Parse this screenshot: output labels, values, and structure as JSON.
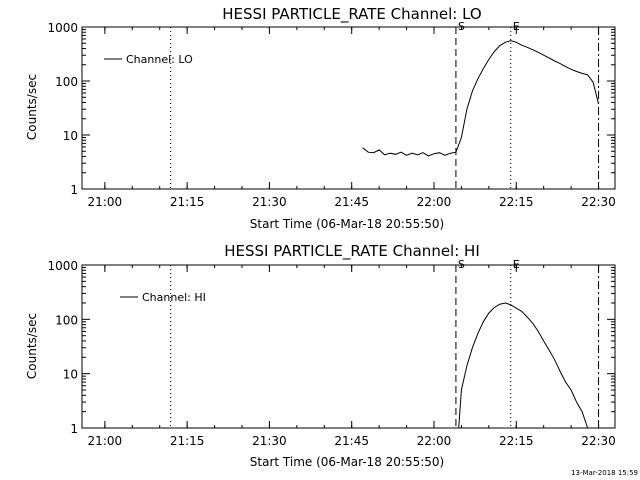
{
  "chart_data": [
    {
      "type": "line",
      "title": "HESSI PARTICLE_RATE Channel: LO",
      "xlabel": "Start Time (06-Mar-18 20:55:50)",
      "ylabel": "Counts/sec",
      "yscale": "log",
      "xlim": [
        "20:55:50",
        "22:33:00"
      ],
      "ylim": [
        1,
        1000
      ],
      "x_ticks": [
        "21:00",
        "21:15",
        "21:30",
        "21:45",
        "22:00",
        "22:15",
        "22:30"
      ],
      "y_ticks": [
        "1",
        "10",
        "100",
        "1000"
      ],
      "legend": {
        "position": "top-left",
        "entries": [
          "Channel: LO"
        ]
      },
      "series": [
        {
          "name": "Channel: LO",
          "x": [
            "21:47:00",
            "21:48:00",
            "21:49:00",
            "21:50:00",
            "21:51:00",
            "21:52:00",
            "21:53:00",
            "21:54:00",
            "21:55:00",
            "21:56:00",
            "21:57:00",
            "21:58:00",
            "21:59:00",
            "22:00:00",
            "22:01:00",
            "22:02:00",
            "22:03:00",
            "22:04:00",
            "22:05:00",
            "22:06:00",
            "22:07:00",
            "22:08:00",
            "22:09:00",
            "22:10:00",
            "22:11:00",
            "22:12:00",
            "22:13:00",
            "22:14:00",
            "22:15:00",
            "22:16:00",
            "22:17:00",
            "22:18:00",
            "22:19:00",
            "22:20:00",
            "22:21:00",
            "22:22:00",
            "22:23:00",
            "22:24:00",
            "22:25:00",
            "22:26:00",
            "22:27:00",
            "22:28:00",
            "22:29:00",
            "22:30:00"
          ],
          "y": [
            5.8,
            4.8,
            4.7,
            5.3,
            4.3,
            4.6,
            4.4,
            4.8,
            4.2,
            4.6,
            4.3,
            4.7,
            4.1,
            4.5,
            4.7,
            4.2,
            4.6,
            4.8,
            9,
            30,
            65,
            110,
            170,
            250,
            350,
            450,
            520,
            560,
            520,
            460,
            420,
            380,
            340,
            300,
            265,
            235,
            210,
            185,
            165,
            150,
            138,
            130,
            95,
            38
          ]
        }
      ],
      "vertical_lines": [
        {
          "time": "21:12:00",
          "style": "dotted",
          "label": ""
        },
        {
          "time": "22:04:00",
          "style": "dashed",
          "label": "S"
        },
        {
          "time": "22:14:00",
          "style": "dotted",
          "label": "E"
        },
        {
          "time": "22:30:00",
          "style": "dash-dot",
          "label": ""
        }
      ]
    },
    {
      "type": "line",
      "title": "HESSI PARTICLE_RATE Channel: HI",
      "xlabel": "Start Time (06-Mar-18 20:55:50)",
      "ylabel": "Counts/sec",
      "yscale": "log",
      "xlim": [
        "20:55:50",
        "22:33:00"
      ],
      "ylim": [
        1,
        1000
      ],
      "x_ticks": [
        "21:00",
        "21:15",
        "21:30",
        "21:45",
        "22:00",
        "22:15",
        "22:30"
      ],
      "y_ticks": [
        "1",
        "10",
        "100",
        "1000"
      ],
      "legend": {
        "position": "top-left",
        "entries": [
          "Channel: HI"
        ]
      },
      "series": [
        {
          "name": "Channel: HI",
          "x": [
            "22:04:30",
            "22:05:00",
            "22:06:00",
            "22:07:00",
            "22:08:00",
            "22:09:00",
            "22:10:00",
            "22:11:00",
            "22:12:00",
            "22:13:00",
            "22:14:00",
            "22:15:00",
            "22:16:00",
            "22:17:00",
            "22:18:00",
            "22:19:00",
            "22:20:00",
            "22:21:00",
            "22:22:00",
            "22:23:00",
            "22:24:00",
            "22:25:00",
            "22:26:00",
            "22:27:00",
            "22:28:00"
          ],
          "y": [
            1,
            5,
            14,
            30,
            55,
            90,
            130,
            165,
            190,
            200,
            185,
            160,
            140,
            110,
            85,
            60,
            40,
            27,
            18,
            11,
            7,
            5,
            3,
            2,
            1
          ]
        }
      ],
      "vertical_lines": [
        {
          "time": "21:12:00",
          "style": "dotted",
          "label": ""
        },
        {
          "time": "22:04:00",
          "style": "dashed",
          "label": "S"
        },
        {
          "time": "22:14:00",
          "style": "dotted",
          "label": "E"
        },
        {
          "time": "22:30:00",
          "style": "dash-dot",
          "label": ""
        }
      ]
    }
  ],
  "footer": {
    "timestamp": "13-Mar-2018 15:59"
  }
}
